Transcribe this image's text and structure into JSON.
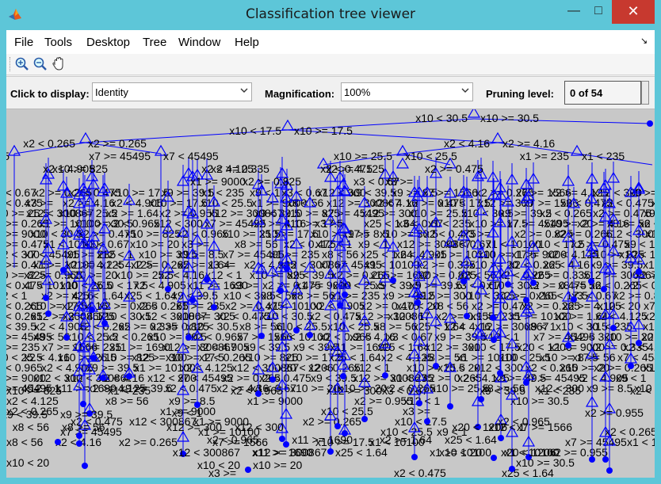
{
  "window": {
    "title": "Classification tree viewer",
    "controls": {
      "minimize": "—",
      "maximize": "□",
      "close": "✕"
    }
  },
  "menu": {
    "items": [
      "File",
      "Tools",
      "Desktop",
      "Tree",
      "Window",
      "Help"
    ],
    "overflow_arrow": "↘"
  },
  "toolbar": {
    "tools": [
      "zoom-in-icon",
      "zoom-out-icon",
      "pan-hand-icon"
    ]
  },
  "controls": {
    "display_label": "Click to display:",
    "display_value": "Identity",
    "magnification_label": "Magnification:",
    "magnification_value": "100%",
    "pruning_label": "Pruning level:",
    "pruning_value": "0 of 54"
  },
  "tree": {
    "line_color": "#0000ff",
    "node_color": "#0000ff",
    "labels": [
      "x10 < 30.5",
      "x10 >= 30.5",
      "x10 < 17.5",
      "x10 >= 17.5",
      "x2 < 0.265",
      "x2 >= 0.265",
      "x2 < 4.16",
      "x2 >= 4.16",
      "x9 >= 8.5",
      "x7 < 45495",
      "x7 >= 45495",
      "x10 < 25.5",
      "x10 >= 25.5",
      "x1 < 235",
      "x1 >= 235",
      "x10 >= 825",
      "x2 < 4.905",
      "x2 >= 0.335",
      "x2 < 4.125",
      "x2 >= 4.125",
      "x2 < 0.475",
      "x2 >= 0.475",
      "x1 >= 9000",
      "x3 < 0.67",
      "x2 >= 0.825",
      "x3 >=",
      "x9 < 39.5",
      "x9 >= 39.5",
      "x8 < 56",
      "x8 >= 56",
      "x9 < 1",
      "x12 < 300",
      "x12 >= 300",
      "x2 < 0.965",
      "x12 < 300867",
      "x12 >= 300867",
      "x10 < 20",
      "x10 >= 20",
      "x11 >= 1690",
      "x25 < 1.64",
      "x2 >= 1.64",
      "x1 < 10100",
      "x1 >= 10100",
      "x2 >= 0.955",
      "x7 >= 1566",
      "x12 < 1",
      "x20 < 1206"
    ]
  }
}
